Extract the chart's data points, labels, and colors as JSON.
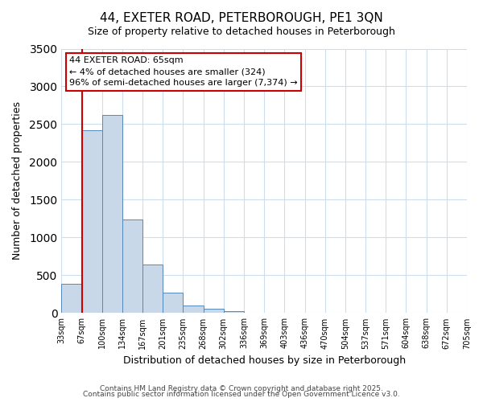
{
  "title": "44, EXETER ROAD, PETERBOROUGH, PE1 3QN",
  "subtitle": "Size of property relative to detached houses in Peterborough",
  "xlabel": "Distribution of detached houses by size in Peterborough",
  "ylabel": "Number of detached properties",
  "bar_color": "#c8d8e8",
  "bar_edge_color": "#5588bb",
  "background_color": "#ffffff",
  "grid_color": "#ccddee",
  "tick_labels": [
    "33sqm",
    "67sqm",
    "100sqm",
    "134sqm",
    "167sqm",
    "201sqm",
    "235sqm",
    "268sqm",
    "302sqm",
    "336sqm",
    "369sqm",
    "403sqm",
    "436sqm",
    "470sqm",
    "504sqm",
    "537sqm",
    "571sqm",
    "604sqm",
    "638sqm",
    "672sqm",
    "705sqm"
  ],
  "bar_heights": [
    390,
    2420,
    2620,
    1240,
    640,
    270,
    100,
    60,
    30,
    0,
    0,
    0,
    0,
    0,
    0,
    0,
    0,
    0,
    0,
    0
  ],
  "ylim": [
    0,
    3500
  ],
  "yticks": [
    0,
    500,
    1000,
    1500,
    2000,
    2500,
    3000,
    3500
  ],
  "property_line_x": 1,
  "annotation_title": "44 EXETER ROAD: 65sqm",
  "annotation_line1": "← 4% of detached houses are smaller (324)",
  "annotation_line2": "96% of semi-detached houses are larger (7,374) →",
  "annotation_box_color": "#ffffff",
  "annotation_box_edge": "#cc0000",
  "property_line_color": "#cc0000",
  "footer1": "Contains HM Land Registry data © Crown copyright and database right 2025.",
  "footer2": "Contains public sector information licensed under the Open Government Licence v3.0."
}
